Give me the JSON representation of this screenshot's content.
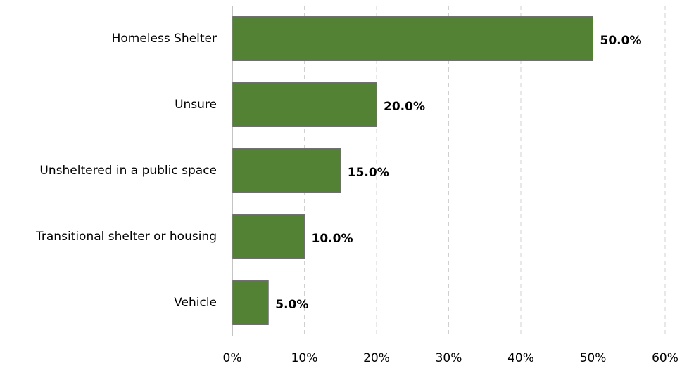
{
  "chart_data": {
    "type": "bar",
    "orientation": "horizontal",
    "categories": [
      "Homeless Shelter",
      "Unsure",
      "Unsheltered in a public space",
      "Transitional shelter or housing",
      "Vehicle"
    ],
    "values": [
      50,
      20,
      15,
      10,
      5
    ],
    "value_labels": [
      "50.0%",
      "20.0%",
      "15.0%",
      "10.0%",
      "5.0%"
    ],
    "color": "#548235",
    "xlim": [
      0,
      60
    ],
    "xticks": [
      {
        "value": 0,
        "label": "0%"
      },
      {
        "value": 10,
        "label": "10%"
      },
      {
        "value": 20,
        "label": "20%"
      },
      {
        "value": 30,
        "label": "30%"
      },
      {
        "value": 40,
        "label": "40%"
      },
      {
        "value": 50,
        "label": "50%"
      },
      {
        "value": 60,
        "label": "60%"
      }
    ],
    "grid": true
  }
}
